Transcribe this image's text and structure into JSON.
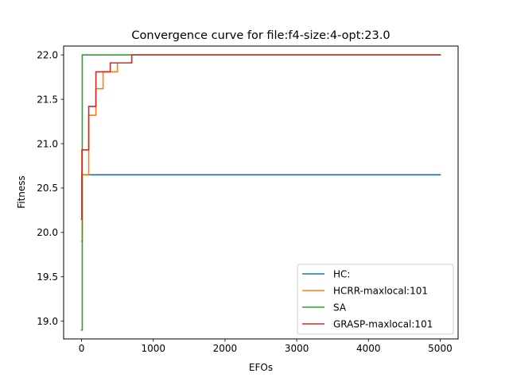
{
  "chart_data": {
    "type": "line",
    "title": "Convergence curve for file:f4-size:4-opt:23.0",
    "xlabel": "EFOs",
    "ylabel": "Fitness",
    "xlim": [
      -250,
      5250
    ],
    "ylim": [
      18.8,
      22.1
    ],
    "xticks": [
      0,
      1000,
      2000,
      3000,
      4000,
      5000
    ],
    "xtick_labels": [
      "0",
      "1000",
      "2000",
      "3000",
      "4000",
      "5000"
    ],
    "yticks": [
      19.0,
      19.5,
      20.0,
      20.5,
      21.0,
      21.5,
      22.0
    ],
    "ytick_labels": [
      "19.0",
      "19.5",
      "20.0",
      "20.5",
      "21.0",
      "21.5",
      "22.0"
    ],
    "grid": false,
    "legend_position": "bottom-right",
    "step": true,
    "series": [
      {
        "name": "HC:",
        "color": "#1f77b4",
        "x": [
          0,
          5,
          5000
        ],
        "y": [
          20.15,
          20.65,
          20.65
        ]
      },
      {
        "name": "HCRR-maxlocal:101",
        "color": "#ff7f0e",
        "x": [
          0,
          10,
          100,
          200,
          300,
          500,
          700,
          5000
        ],
        "y": [
          19.9,
          20.65,
          21.32,
          21.62,
          21.81,
          21.91,
          22.0,
          22.0
        ]
      },
      {
        "name": "SA",
        "color": "#2ca02c",
        "x": [
          0,
          10,
          5000
        ],
        "y": [
          18.9,
          22.0,
          22.0
        ]
      },
      {
        "name": "GRASP-maxlocal:101",
        "color": "#d62728",
        "x": [
          0,
          5,
          100,
          200,
          400,
          700,
          5000
        ],
        "y": [
          20.15,
          20.93,
          21.42,
          21.81,
          21.91,
          22.0,
          22.0
        ]
      }
    ]
  }
}
